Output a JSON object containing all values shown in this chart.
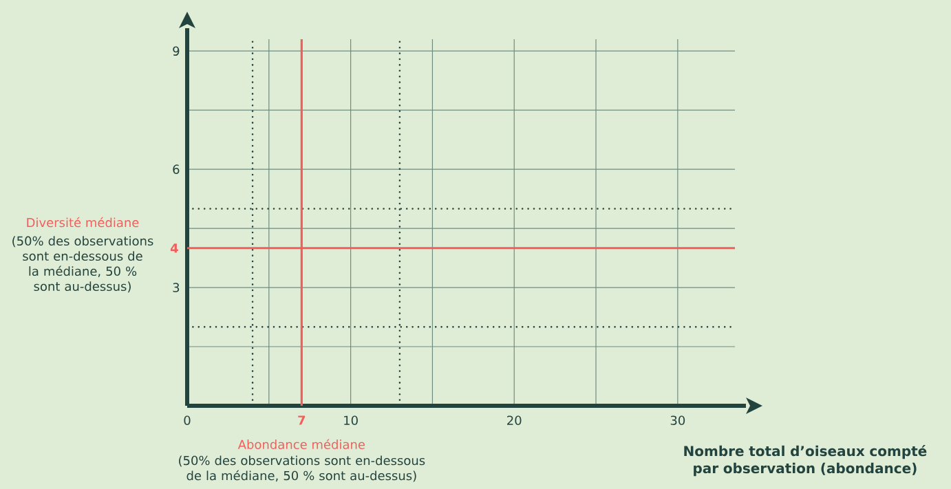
{
  "chart_data": {
    "type": "line",
    "xlabel": "Nombre total d’oiseaux compté par observation (abondance)",
    "xlim": [
      0,
      33.5
    ],
    "ylim": [
      0,
      9.3
    ],
    "xticks": [
      0,
      {
        "value": 5,
        "label": null
      },
      10,
      {
        "value": 15,
        "label": null
      },
      20,
      {
        "value": 25,
        "label": null
      },
      30
    ],
    "yticks": [
      {
        "value": 0,
        "label": null
      },
      {
        "value": 1.5,
        "label": null
      },
      3,
      {
        "value": 4.5,
        "label": null
      },
      6,
      {
        "value": 7.5,
        "label": null
      },
      9
    ],
    "grid": true,
    "ref_lines": [
      {
        "axis": "x",
        "value": 4,
        "color": "#23433f",
        "line_style": "dotted"
      },
      {
        "axis": "x",
        "value": 13,
        "color": "#23433f",
        "line_style": "dotted"
      },
      {
        "axis": "y",
        "value": 5,
        "color": "#23433f",
        "line_style": "dotted"
      },
      {
        "axis": "y",
        "value": 2,
        "color": "#23433f",
        "line_style": "dotted"
      },
      {
        "axis": "x",
        "value": 7,
        "label": "Abondance médiane",
        "color": "#f05f5c",
        "line_style": "solid"
      },
      {
        "axis": "y",
        "value": 4,
        "label": "Diversité médiane",
        "color": "#f05f5c",
        "line_style": "solid"
      }
    ],
    "annotations": [
      "(50% des observations sont en-dessous de la médiane, 50 % sont au-dessus)",
      "(50% des observations sont en-dessous de la médiane, 50 % sont au-dessus)",
      {
        "text": "7",
        "x": 7,
        "y": 0
      },
      {
        "text": "4",
        "x": 0,
        "y": 4
      }
    ]
  }
}
